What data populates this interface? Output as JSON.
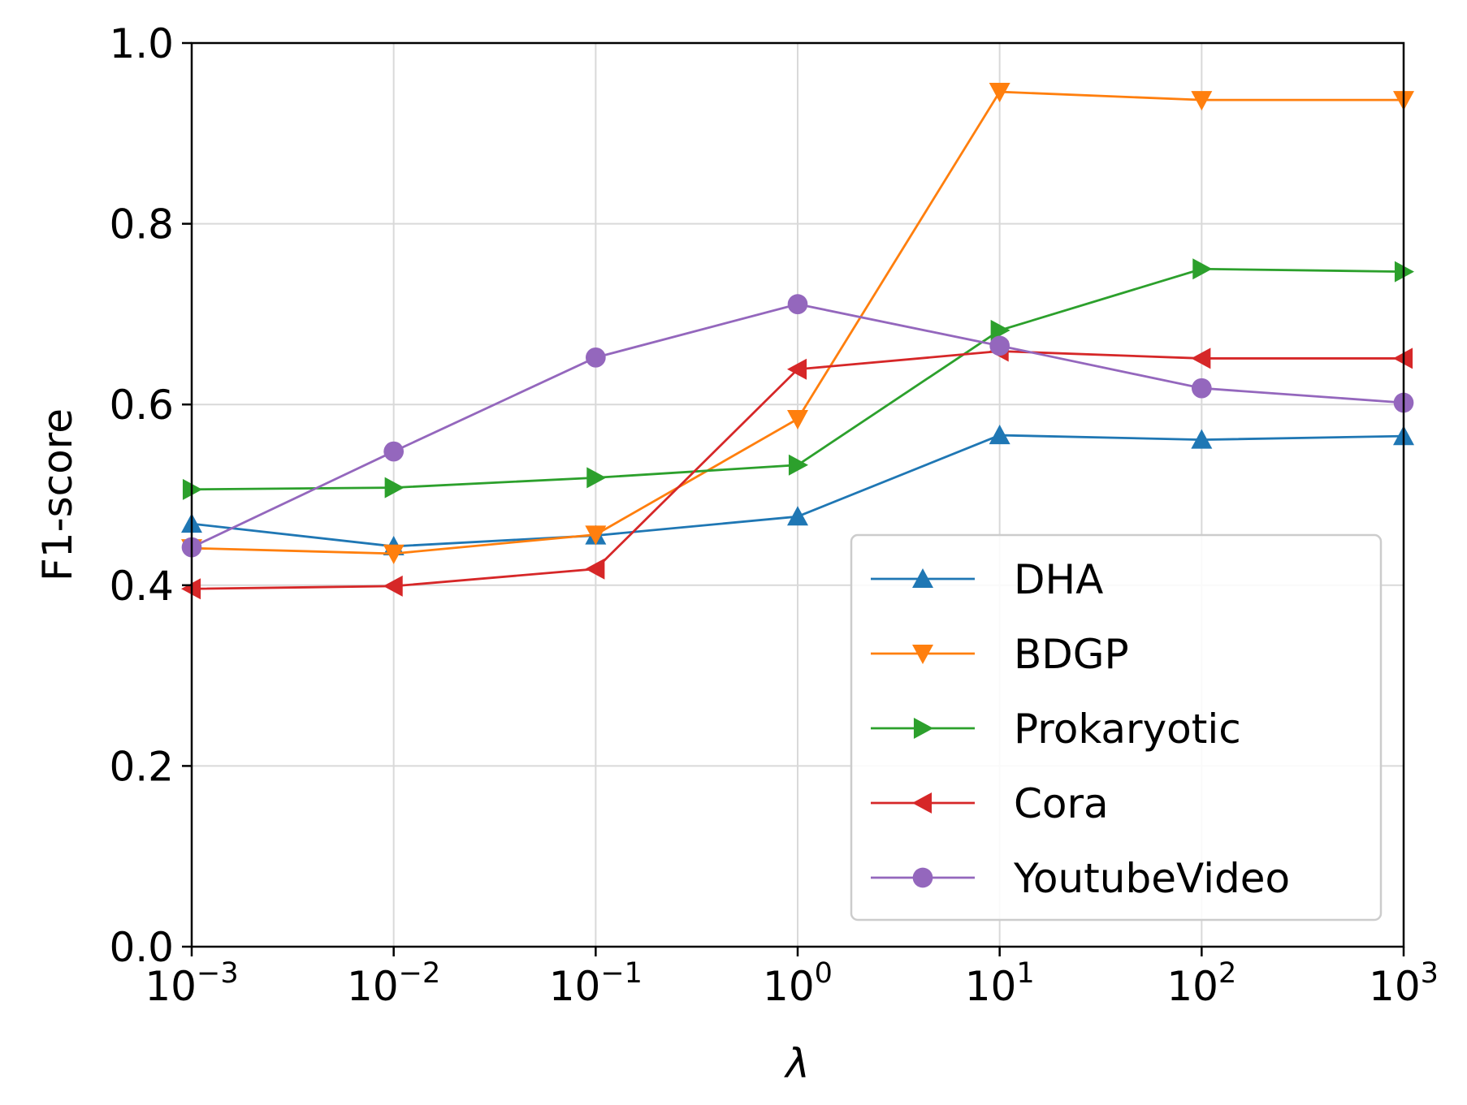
{
  "chart_data": {
    "type": "line",
    "title": "",
    "xlabel": "λ",
    "ylabel": "F1-score",
    "xscale": "log",
    "x": [
      0.001,
      0.01,
      0.1,
      1,
      10,
      100,
      1000
    ],
    "x_tick_labels": [
      {
        "base": "10",
        "exp": "−3"
      },
      {
        "base": "10",
        "exp": "−2"
      },
      {
        "base": "10",
        "exp": "−1"
      },
      {
        "base": "10",
        "exp": "0"
      },
      {
        "base": "10",
        "exp": "1"
      },
      {
        "base": "10",
        "exp": "2"
      },
      {
        "base": "10",
        "exp": "3"
      }
    ],
    "y_ticks": [
      "0.0",
      "0.2",
      "0.4",
      "0.6",
      "0.8",
      "1.0"
    ],
    "xlim": [
      0.001,
      1000
    ],
    "ylim": [
      0.0,
      1.0
    ],
    "grid": true,
    "legend_position": "lower-right",
    "series": [
      {
        "name": "DHA",
        "color": "#1f77b4",
        "marker": "triangle-up",
        "values": [
          0.468,
          0.443,
          0.455,
          0.476,
          0.566,
          0.561,
          0.565
        ]
      },
      {
        "name": "BDGP",
        "color": "#ff7f0e",
        "marker": "triangle-down",
        "values": [
          0.441,
          0.435,
          0.456,
          0.584,
          0.946,
          0.937,
          0.937
        ]
      },
      {
        "name": "Prokaryotic",
        "color": "#2ca02c",
        "marker": "triangle-right",
        "values": [
          0.506,
          0.508,
          0.519,
          0.533,
          0.682,
          0.75,
          0.747
        ]
      },
      {
        "name": "Cora",
        "color": "#d62728",
        "marker": "triangle-left",
        "values": [
          0.396,
          0.399,
          0.418,
          0.639,
          0.659,
          0.651,
          0.651
        ]
      },
      {
        "name": "YoutubeVideo",
        "color": "#9467bd",
        "marker": "circle",
        "values": [
          0.442,
          0.548,
          0.652,
          0.711,
          0.665,
          0.618,
          0.602
        ]
      }
    ]
  }
}
